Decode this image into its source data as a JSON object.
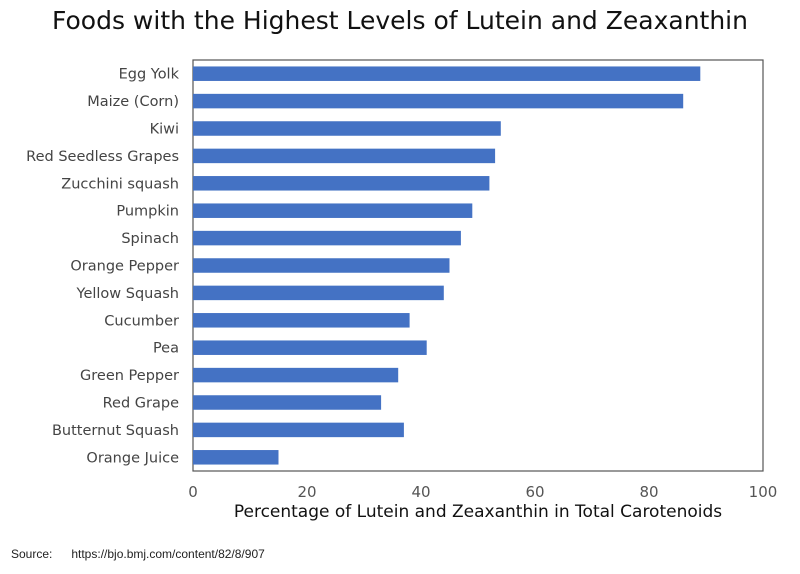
{
  "chart_data": {
    "type": "bar",
    "orientation": "horizontal",
    "title": "Foods with the Highest Levels of Lutein and Zeaxanthin",
    "xlabel": "Percentage of Lutein and Zeaxanthin in Total Carotenoids",
    "ylabel": "",
    "xlim": [
      0,
      100
    ],
    "xticks": [
      0,
      20,
      40,
      60,
      80,
      100
    ],
    "grid": false,
    "color": "#4472C4",
    "categories": [
      "Egg Yolk",
      "Maize (Corn)",
      "Kiwi",
      "Red Seedless Grapes",
      "Zucchini squash",
      "Pumpkin",
      "Spinach",
      "Orange Pepper",
      "Yellow Squash",
      "Cucumber",
      "Pea",
      "Green Pepper",
      "Red Grape",
      "Butternut Squash",
      "Orange Juice"
    ],
    "values": [
      89,
      86,
      54,
      53,
      52,
      49,
      47,
      45,
      44,
      38,
      41,
      36,
      33,
      37,
      15
    ]
  },
  "source": {
    "label": "Source:",
    "url": "https://bjo.bmj.com/content/82/8/907"
  }
}
